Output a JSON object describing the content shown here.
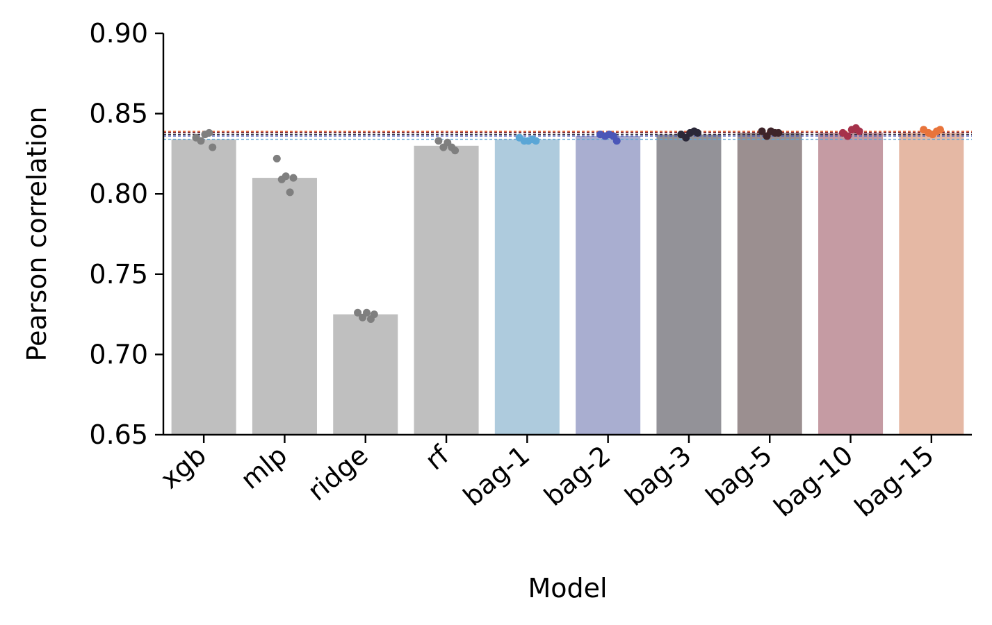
{
  "chart_data": {
    "type": "bar",
    "xlabel": "Model",
    "ylabel": "Pearson correlation",
    "ylim": [
      0.65,
      0.9
    ],
    "yticks": [
      "0.65",
      "0.70",
      "0.75",
      "0.80",
      "0.85",
      "0.90"
    ],
    "grid": false,
    "categories": [
      "xgb",
      "mlp",
      "ridge",
      "rf",
      "bag-1",
      "bag-2",
      "bag-3",
      "bag-5",
      "bag-10",
      "bag-15"
    ],
    "values": [
      0.834,
      0.81,
      0.725,
      0.83,
      0.834,
      0.836,
      0.837,
      0.838,
      0.838,
      0.838
    ],
    "bar_colors": [
      "#bfbfbf",
      "#bfbfbf",
      "#bfbfbf",
      "#bfbfbf",
      "#aecbdd",
      "#a9aed0",
      "#939298",
      "#9b8f90",
      "#c59ba3",
      "#e5b8a4"
    ],
    "point_colors": [
      "#7f7f7f",
      "#7f7f7f",
      "#7f7f7f",
      "#7f7f7f",
      "#5aa6d6",
      "#4a56b8",
      "#2a2838",
      "#3e2429",
      "#a6324b",
      "#e8743b"
    ],
    "points": [
      [
        0.835,
        0.833,
        0.837,
        0.838,
        0.829
      ],
      [
        0.822,
        0.809,
        0.811,
        0.801,
        0.81
      ],
      [
        0.726,
        0.723,
        0.726,
        0.722,
        0.725
      ],
      [
        0.833,
        0.829,
        0.832,
        0.829,
        0.827
      ],
      [
        0.835,
        0.833,
        0.833,
        0.834,
        0.833
      ],
      [
        0.837,
        0.836,
        0.837,
        0.836,
        0.833
      ],
      [
        0.837,
        0.835,
        0.838,
        0.839,
        0.838
      ],
      [
        0.839,
        0.836,
        0.839,
        0.838,
        0.838
      ],
      [
        0.838,
        0.836,
        0.84,
        0.841,
        0.839
      ],
      [
        0.84,
        0.838,
        0.837,
        0.839,
        0.84
      ]
    ],
    "reference_lines": [
      {
        "value": 0.834,
        "color": "#5aa6d6"
      },
      {
        "value": 0.836,
        "color": "#4a56b8"
      },
      {
        "value": 0.837,
        "color": "#2a2838"
      },
      {
        "value": 0.838,
        "color": "#3e2429"
      },
      {
        "value": 0.8385,
        "color": "#a6324b"
      },
      {
        "value": 0.839,
        "color": "#e8743b"
      }
    ]
  }
}
